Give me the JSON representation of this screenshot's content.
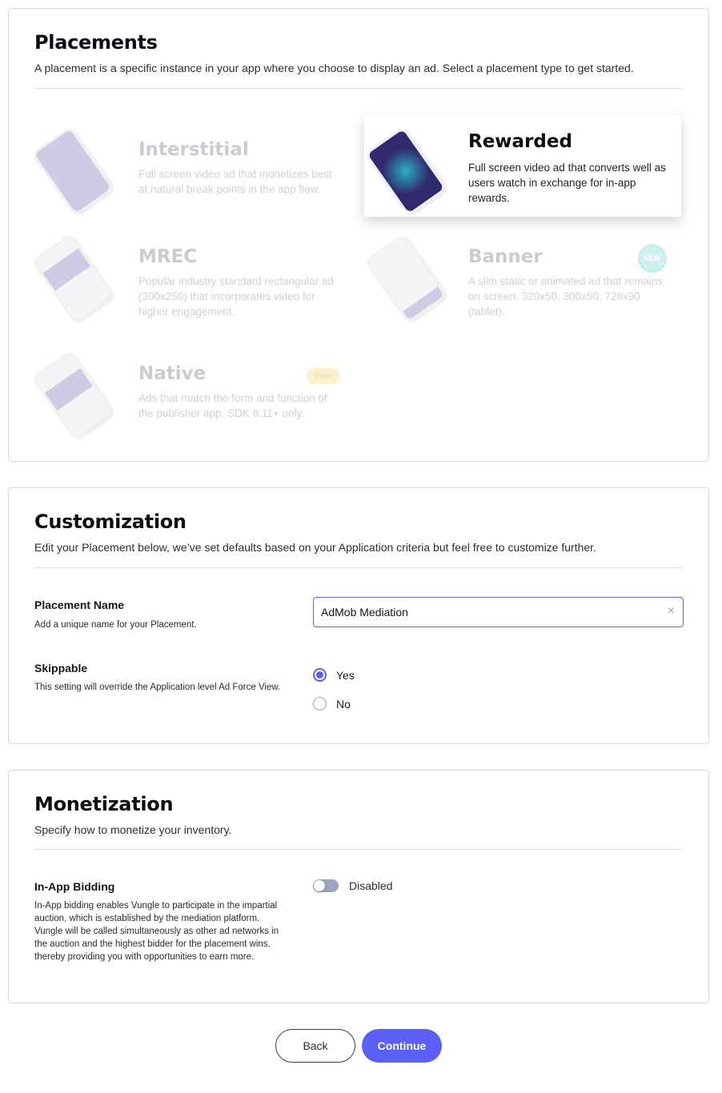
{
  "placements": {
    "title": "Placements",
    "subtitle": "A placement is a specific instance in your app where you choose to display an ad. Select a placement type to get started.",
    "types": [
      {
        "name": "Interstitial",
        "description": "Full screen video ad that monetizes best at natural break points in the app flow.",
        "selected": false
      },
      {
        "name": "Rewarded",
        "description": "Full screen video ad that converts well as users watch in exchange for in-app rewards.",
        "selected": true
      },
      {
        "name": "MREC",
        "description": "Popular industry standard rectangular ad (300x250) that incorporates video for higher engagement.",
        "selected": false
      },
      {
        "name": "Banner",
        "description": "A slim static or animated ad that remains on screen. 320x50, 300x50, 728x90 (tablet).",
        "badge": "NEW",
        "selected": false
      },
      {
        "name": "Native",
        "description": "Ads that match the form and function of the publisher app. SDK 6.11+ only.",
        "badge": "Beta",
        "selected": false
      }
    ]
  },
  "customization": {
    "title": "Customization",
    "subtitle": "Edit your Placement below, we’ve set defaults based on your Application criteria but feel free to customize further.",
    "placement_name": {
      "label": "Placement Name",
      "help": "Add a unique name for your Placement.",
      "value": "AdMob Mediation"
    },
    "skippable": {
      "label": "Skippable",
      "help": "This setting will override the Application level Ad Force View.",
      "options": [
        "Yes",
        "No"
      ],
      "selected": "Yes"
    }
  },
  "monetization": {
    "title": "Monetization",
    "subtitle": "Specify how to monetize your inventory.",
    "bidding": {
      "label": "In-App Bidding",
      "help": "In-App bidding enables Vungle to participate in the impartial auction, which is established by the mediation platform. Vungle will be called simultaneously as other ad networks in the auction and the highest bidder for the placement wins, thereby providing you with opportunities to earn more.",
      "state": "Disabled",
      "enabled": false
    }
  },
  "actions": {
    "back": "Back",
    "continue": "Continue"
  },
  "colors": {
    "accent": "#5b5ff6",
    "border": "#d3dbe5"
  }
}
